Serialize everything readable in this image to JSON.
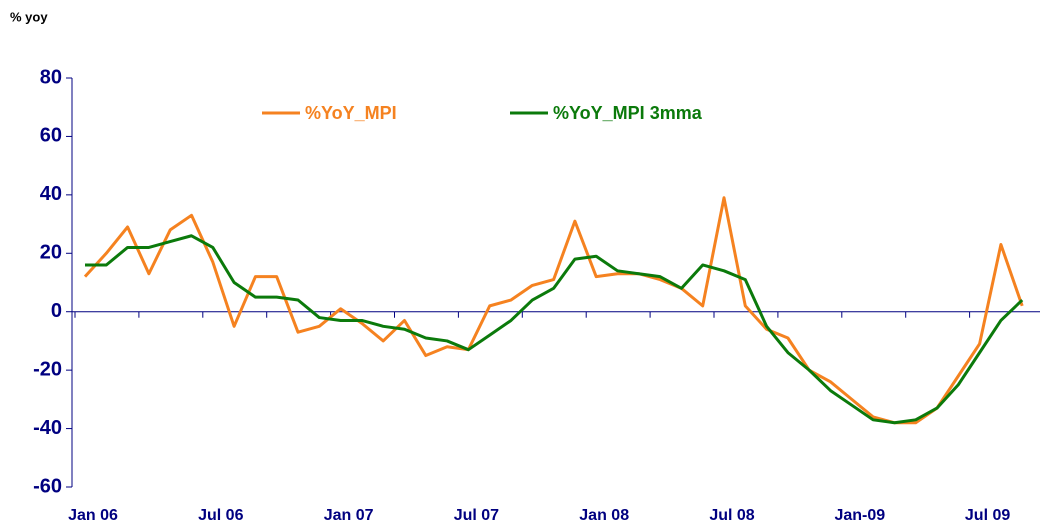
{
  "chart_data": {
    "type": "line",
    "y_label": "% yoy",
    "categories": [
      "Jan  06",
      null,
      null,
      null,
      null,
      null,
      "Jul 06",
      null,
      null,
      null,
      null,
      null,
      "Jan  07",
      null,
      null,
      null,
      null,
      null,
      "Jul 07",
      null,
      null,
      null,
      null,
      null,
      "Jan 08",
      null,
      null,
      null,
      null,
      null,
      "Jul 08",
      null,
      null,
      null,
      null,
      null,
      "Jan-09",
      null,
      null,
      null,
      null,
      null,
      "Jul 09",
      null,
      null
    ],
    "series": [
      {
        "name": "%YoY_MPI",
        "color": "#f58220",
        "values": [
          12,
          20,
          29,
          13,
          28,
          33,
          17,
          -5,
          12,
          12,
          -7,
          -5,
          1,
          -4,
          -10,
          -3,
          -15,
          -12,
          -13,
          2,
          4,
          9,
          11,
          31,
          12,
          13,
          13,
          11,
          8,
          2,
          39,
          2,
          -6,
          -9,
          -20,
          -24,
          -30,
          -36,
          -38,
          -38,
          -33,
          -22,
          -11,
          23,
          2
        ]
      },
      {
        "name": "%YoY_MPI 3mma",
        "color": "#0b7a0b",
        "values": [
          16,
          16,
          22,
          22,
          24,
          26,
          22,
          10,
          5,
          5,
          4,
          -2,
          -3,
          -3,
          -5,
          -6,
          -9,
          -10,
          -13,
          -8,
          -3,
          4,
          8,
          18,
          19,
          14,
          13,
          12,
          8,
          16,
          14,
          11,
          -5,
          -14,
          -20,
          -27,
          -32,
          -37,
          -38,
          -37,
          -33,
          -25,
          -14,
          -3,
          4
        ]
      }
    ],
    "ylim": [
      -60,
      80
    ],
    "yticks": [
      -60,
      -40,
      -20,
      0,
      20,
      40,
      60,
      80
    ],
    "legend": "top",
    "grid": false
  }
}
